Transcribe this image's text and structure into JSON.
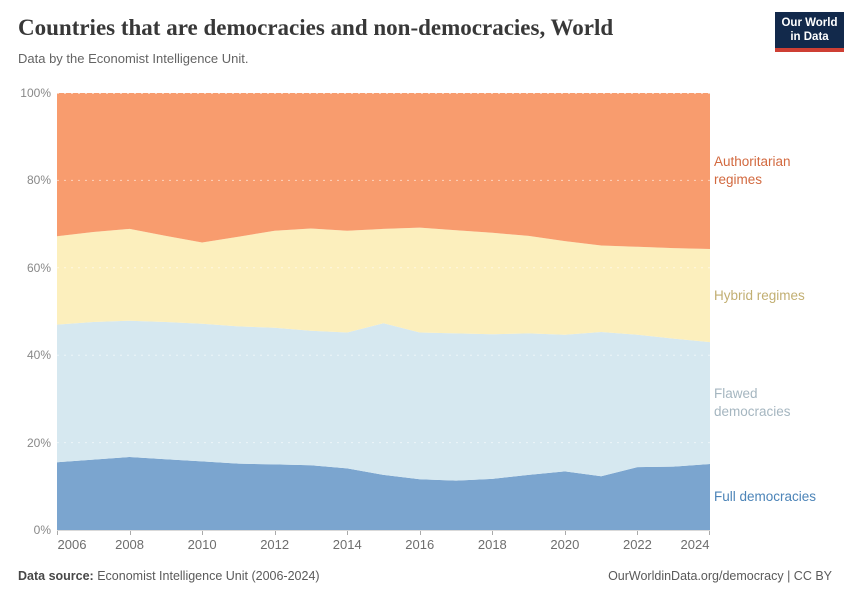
{
  "header": {
    "title": "Countries that are democracies and non-democracies, World",
    "subtitle": "Data by the Economist Intelligence Unit."
  },
  "logo": {
    "line1": "Our World",
    "line2": "in Data",
    "bg_color": "#12294B",
    "accent_color": "#CE3F34"
  },
  "chart_data": {
    "type": "area",
    "stacked": true,
    "normalized_to_percent": true,
    "grid": "dashed",
    "legend_position": "right",
    "ylim": [
      0,
      100
    ],
    "y_tick_labels": [
      "0%",
      "20%",
      "40%",
      "60%",
      "80%",
      "100%"
    ],
    "y_tick_values": [
      0,
      20,
      40,
      60,
      80,
      100
    ],
    "x_ticks": [
      2006,
      2008,
      2010,
      2012,
      2014,
      2016,
      2018,
      2020,
      2022,
      2024
    ],
    "x": [
      2006,
      2007,
      2008,
      2009,
      2010,
      2011,
      2012,
      2013,
      2014,
      2015,
      2016,
      2017,
      2018,
      2019,
      2020,
      2021,
      2022,
      2023,
      2024
    ],
    "series": [
      {
        "name": "Full democracies",
        "color": "#7BA5CF",
        "label_color": "#4C84B8",
        "values": [
          15.5,
          16.1,
          16.7,
          16.2,
          15.7,
          15.2,
          15.0,
          14.8,
          14.1,
          12.6,
          11.6,
          11.3,
          11.7,
          12.6,
          13.4,
          12.3,
          14.4,
          14.5,
          15.1
        ]
      },
      {
        "name": "Flawed democracies",
        "color": "#D6E8F0",
        "label_color": "#A5B6C0",
        "values": [
          31.5,
          31.5,
          31.2,
          31.4,
          31.5,
          31.4,
          31.3,
          30.8,
          31.1,
          34.7,
          33.6,
          33.7,
          33.1,
          32.4,
          31.3,
          33.0,
          30.3,
          29.3,
          27.9
        ]
      },
      {
        "name": "Hybrid regimes",
        "color": "#FCEFBD",
        "label_color": "#C2AF72",
        "values": [
          20.2,
          20.6,
          21.0,
          19.7,
          18.6,
          20.5,
          22.2,
          23.4,
          23.3,
          21.6,
          24.0,
          23.6,
          23.2,
          22.3,
          21.4,
          19.8,
          20.1,
          20.7,
          21.3
        ]
      },
      {
        "name": "Authoritarian regimes",
        "color": "#F89C6E",
        "label_color": "#D2693F",
        "values": [
          32.8,
          31.8,
          31.1,
          32.7,
          34.2,
          32.9,
          31.5,
          31.0,
          31.5,
          31.1,
          30.8,
          31.4,
          32.0,
          32.7,
          33.9,
          34.9,
          35.2,
          35.5,
          35.7
        ]
      }
    ]
  },
  "footer": {
    "source_label": "Data source:",
    "source_text": "Economist Intelligence Unit (2006-2024)",
    "credit": "OurWorldinData.org/democracy | CC BY"
  }
}
